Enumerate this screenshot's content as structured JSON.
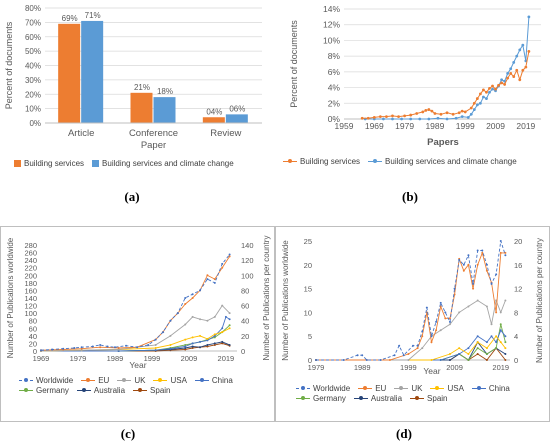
{
  "chart_data": [
    {
      "panel": "(a)",
      "type": "bar",
      "categories": [
        "Article",
        "Conference Paper",
        "Review"
      ],
      "series": [
        {
          "name": "Building services",
          "values": [
            69,
            21,
            4
          ],
          "labels": [
            "69%",
            "21%",
            "04%"
          ],
          "color": "#ED7D31"
        },
        {
          "name": "Building services and climate change",
          "values": [
            71,
            18,
            6
          ],
          "labels": [
            "71%",
            "18%",
            "06%"
          ],
          "color": "#5B9BD5"
        }
      ],
      "ylabel": "Percent of documents",
      "ylim": [
        0,
        80
      ],
      "yticks": [
        "0%",
        "10%",
        "20%",
        "30%",
        "40%",
        "50%",
        "60%",
        "70%",
        "80%"
      ],
      "grid": true,
      "legend": "bottom"
    },
    {
      "panel": "(b)",
      "type": "line",
      "xlabel": "Papers",
      "ylabel": "Percent of documents",
      "xlim": [
        1959,
        2024
      ],
      "ylim": [
        0,
        14
      ],
      "xticks": [
        "1959",
        "1969",
        "1979",
        "1989",
        "1999",
        "2009",
        "2019"
      ],
      "yticks": [
        "0%",
        "2%",
        "4%",
        "6%",
        "8%",
        "10%",
        "12%",
        "14%"
      ],
      "grid": true,
      "legend": "bottom",
      "series": [
        {
          "name": "Building services",
          "color": "#ED7D31",
          "x": [
            1965,
            1967,
            1969,
            1971,
            1973,
            1975,
            1977,
            1979,
            1981,
            1983,
            1985,
            1986,
            1987,
            1988,
            1989,
            1991,
            1993,
            1995,
            1997,
            1998,
            1999,
            2001,
            2002,
            2003,
            2004,
            2005,
            2006,
            2007,
            2008,
            2009,
            2010,
            2011,
            2012,
            2013,
            2014,
            2015,
            2016,
            2017,
            2018,
            2019,
            2020
          ],
          "y": [
            0.1,
            0.1,
            0.2,
            0.3,
            0.3,
            0.4,
            0.3,
            0.4,
            0.5,
            0.7,
            0.9,
            1.1,
            1.2,
            1.0,
            0.7,
            0.6,
            0.8,
            0.6,
            0.8,
            1.0,
            0.9,
            1.4,
            2.0,
            2.6,
            3.2,
            3.7,
            3.4,
            3.9,
            4.2,
            3.8,
            4.3,
            4.6,
            4.4,
            5.2,
            5.8,
            5.4,
            6.2,
            5.0,
            6.2,
            6.6,
            8.6
          ]
        },
        {
          "name": "Building services and climate change",
          "color": "#5B9BD5",
          "x": [
            1966,
            1969,
            1972,
            1975,
            1978,
            1981,
            1984,
            1987,
            1990,
            1993,
            1996,
            1998,
            2000,
            2001,
            2002,
            2003,
            2004,
            2005,
            2006,
            2007,
            2008,
            2009,
            2010,
            2011,
            2012,
            2013,
            2014,
            2015,
            2016,
            2017,
            2018,
            2019,
            2020
          ],
          "y": [
            0,
            0,
            0,
            0,
            0,
            0,
            0,
            0,
            0.1,
            0,
            0.1,
            0.3,
            0.2,
            0.6,
            1.2,
            1.8,
            2.0,
            2.8,
            2.6,
            3.4,
            3.8,
            3.6,
            4.2,
            5.0,
            4.8,
            5.8,
            6.4,
            7.2,
            8.0,
            8.8,
            9.4,
            7.4,
            13.0
          ]
        }
      ]
    },
    {
      "panel": "(c)",
      "type": "line",
      "xlabel": "Year",
      "ylabel": "Number of Publications worldwide",
      "ylabel_right": "Number of Publications per country",
      "xlim": [
        1969,
        2022
      ],
      "ylim": [
        0,
        280
      ],
      "ylim_right": [
        0,
        140
      ],
      "xticks": [
        "1969",
        "1979",
        "1989",
        "1999",
        "2009",
        "2019"
      ],
      "yticks": [
        "0",
        "20",
        "40",
        "60",
        "80",
        "100",
        "120",
        "140",
        "160",
        "180",
        "200",
        "220",
        "240",
        "260",
        "280"
      ],
      "yticks_right": [
        "0",
        "20",
        "40",
        "60",
        "80",
        "100",
        "120",
        "140"
      ],
      "legend": "bottom",
      "series": [
        {
          "name": "Worldwide",
          "color": "#4472C4",
          "dash": true,
          "axis": "left",
          "x": [
            1969,
            1972,
            1975,
            1978,
            1980,
            1983,
            1985,
            1987,
            1989,
            1992,
            1995,
            1998,
            2000,
            2002,
            2004,
            2006,
            2008,
            2010,
            2012,
            2014,
            2016,
            2018,
            2020
          ],
          "y": [
            2,
            4,
            6,
            8,
            10,
            12,
            16,
            12,
            10,
            14,
            10,
            16,
            30,
            50,
            80,
            100,
            140,
            150,
            160,
            190,
            180,
            230,
            255
          ]
        },
        {
          "name": "EU",
          "color": "#ED7D31",
          "axis": "right",
          "x": [
            1969,
            1975,
            1980,
            1985,
            1990,
            1995,
            2000,
            2002,
            2004,
            2006,
            2008,
            2010,
            2012,
            2014,
            2016,
            2018,
            2020
          ],
          "y": [
            1,
            2,
            3,
            5,
            4,
            5,
            15,
            25,
            40,
            50,
            62,
            70,
            80,
            100,
            95,
            110,
            125
          ]
        },
        {
          "name": "UK",
          "color": "#A5A5A5",
          "axis": "right",
          "x": [
            1969,
            1980,
            1990,
            2000,
            2004,
            2008,
            2010,
            2012,
            2014,
            2016,
            2018,
            2020
          ],
          "y": [
            0,
            1,
            2,
            8,
            20,
            35,
            45,
            42,
            40,
            45,
            60,
            50
          ]
        },
        {
          "name": "USA",
          "color": "#FFC000",
          "axis": "right",
          "x": [
            1969,
            1980,
            1990,
            2000,
            2004,
            2008,
            2010,
            2012,
            2014,
            2016,
            2018,
            2020
          ],
          "y": [
            0,
            1,
            2,
            4,
            8,
            15,
            18,
            20,
            16,
            22,
            25,
            30
          ]
        },
        {
          "name": "China",
          "color": "#4472C4",
          "axis": "right",
          "x": [
            1969,
            1990,
            2000,
            2004,
            2008,
            2010,
            2012,
            2014,
            2016,
            2018,
            2019,
            2020
          ],
          "y": [
            0,
            0,
            1,
            3,
            6,
            10,
            12,
            14,
            20,
            30,
            45,
            42
          ]
        },
        {
          "name": "Germany",
          "color": "#70AD47",
          "axis": "right",
          "x": [
            1969,
            1990,
            2000,
            2004,
            2008,
            2010,
            2012,
            2014,
            2016,
            2018,
            2020
          ],
          "y": [
            0,
            0,
            1,
            4,
            8,
            10,
            12,
            15,
            18,
            25,
            34
          ]
        },
        {
          "name": "Australia",
          "color": "#264478",
          "axis": "right",
          "x": [
            1969,
            1990,
            2000,
            2004,
            2008,
            2010,
            2012,
            2014,
            2016,
            2018,
            2020
          ],
          "y": [
            0,
            0,
            1,
            2,
            4,
            6,
            5,
            8,
            10,
            12,
            8
          ]
        },
        {
          "name": "Spain",
          "color": "#9E480E",
          "axis": "right",
          "x": [
            1969,
            1990,
            2000,
            2004,
            2008,
            2010,
            2012,
            2014,
            2016,
            2018,
            2020
          ],
          "y": [
            0,
            0,
            0,
            1,
            2,
            4,
            5,
            6,
            8,
            10,
            7
          ]
        }
      ]
    },
    {
      "panel": "(d)",
      "type": "line",
      "xlabel": "Year",
      "ylabel": "Number of Publications worldwide",
      "ylabel_right": "Number of Publications per country",
      "xlim": [
        1979,
        2021
      ],
      "ylim": [
        0,
        25
      ],
      "ylim_right": [
        0,
        20
      ],
      "xticks": [
        "1979",
        "1989",
        "1999",
        "2009",
        "2019"
      ],
      "yticks": [
        "0",
        "5",
        "10",
        "15",
        "20",
        "25"
      ],
      "yticks_right": [
        "0",
        "4",
        "8",
        "12",
        "16",
        "20"
      ],
      "legend": "bottom",
      "series": [
        {
          "name": "Worldwide",
          "color": "#4472C4",
          "dash": true,
          "axis": "left",
          "x": [
            1979,
            1985,
            1988,
            1989,
            1990,
            1993,
            1996,
            1997,
            1998,
            2000,
            2001,
            2002,
            2003,
            2004,
            2005,
            2006,
            2007,
            2008,
            2009,
            2010,
            2011,
            2012,
            2013,
            2014,
            2015,
            2016,
            2017,
            2018,
            2019,
            2020
          ],
          "y": [
            0,
            0,
            1,
            1,
            0,
            0,
            1,
            3,
            1,
            3,
            3,
            6,
            11,
            5,
            8,
            12,
            10,
            8,
            15,
            21,
            20,
            22,
            16,
            23,
            23,
            20,
            16,
            18,
            25,
            22
          ]
        },
        {
          "name": "EU",
          "color": "#ED7D31",
          "axis": "right",
          "x": [
            1979,
            1995,
            1999,
            2001,
            2002,
            2003,
            2004,
            2005,
            2006,
            2007,
            2008,
            2009,
            2010,
            2011,
            2012,
            2013,
            2014,
            2015,
            2016,
            2017,
            2018,
            2019,
            2020
          ],
          "y": [
            0,
            0,
            1,
            2,
            4,
            8,
            3,
            5,
            9,
            7,
            7,
            11,
            17,
            15,
            16,
            12,
            16,
            18,
            15,
            13,
            8,
            18,
            18
          ]
        },
        {
          "name": "UK",
          "color": "#A5A5A5",
          "axis": "right",
          "x": [
            1979,
            1999,
            2002,
            2004,
            2006,
            2008,
            2010,
            2012,
            2014,
            2016,
            2017,
            2018,
            2019,
            2020
          ],
          "y": [
            0,
            0,
            2,
            4,
            5,
            6,
            8,
            9,
            10,
            9,
            6,
            10,
            8,
            10
          ]
        },
        {
          "name": "USA",
          "color": "#FFC000",
          "axis": "right",
          "x": [
            1979,
            2004,
            2008,
            2010,
            2012,
            2014,
            2016,
            2018,
            2019,
            2020
          ],
          "y": [
            0,
            0,
            1,
            2,
            1,
            3,
            2,
            4,
            3,
            2
          ]
        },
        {
          "name": "China",
          "color": "#4472C4",
          "axis": "right",
          "x": [
            1979,
            2006,
            2010,
            2012,
            2014,
            2016,
            2017,
            2018,
            2019,
            2020
          ],
          "y": [
            0,
            0,
            1,
            2,
            4,
            3,
            4,
            3,
            5,
            4
          ]
        },
        {
          "name": "Germany",
          "color": "#70AD47",
          "axis": "right",
          "x": [
            1979,
            2006,
            2010,
            2012,
            2014,
            2016,
            2018,
            2019,
            2020
          ],
          "y": [
            0,
            0,
            1,
            0,
            2,
            1,
            2,
            6,
            3
          ]
        },
        {
          "name": "Australia",
          "color": "#264478",
          "axis": "right",
          "x": [
            1979,
            2008,
            2010,
            2012,
            2014,
            2016,
            2018,
            2020
          ],
          "y": [
            0,
            0,
            1,
            0,
            3,
            1,
            2,
            1
          ]
        },
        {
          "name": "Spain",
          "color": "#9E480E",
          "axis": "right",
          "x": [
            1979,
            2008,
            2010,
            2012,
            2014,
            2016,
            2018,
            2020
          ],
          "y": [
            0,
            0,
            1,
            0,
            1,
            0,
            2,
            0
          ]
        }
      ]
    }
  ],
  "panel_labels": {
    "a": "(a)",
    "b": "(b)",
    "c": "(c)",
    "d": "(d)"
  }
}
